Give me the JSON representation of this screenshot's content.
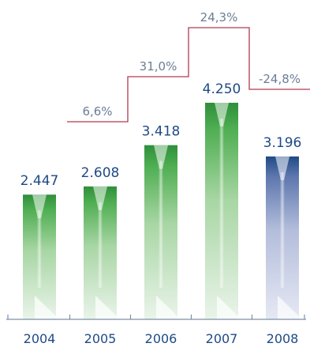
{
  "chart_data": {
    "type": "bar",
    "categories": [
      "2004",
      "2005",
      "2006",
      "2007",
      "2008"
    ],
    "values": [
      2447,
      2608,
      3418,
      4250,
      3196
    ],
    "value_labels": [
      "2.447",
      "2.608",
      "3.418",
      "4.250",
      "3.196"
    ],
    "growth_labels": [
      "6,6%",
      "31,0%",
      "24,3%",
      "-24,8%"
    ],
    "growth_values": [
      6.6,
      31.0,
      24.3,
      -24.8
    ],
    "ylim": [
      0,
      4250
    ],
    "title": "",
    "xlabel": "",
    "ylabel": "",
    "grid": false,
    "legend": "none"
  },
  "colors": {
    "bar_green_dark": "#2f8f3a",
    "bar_green_light": "#e4f1e4",
    "bar_blue_dark": "#1f4a86",
    "bar_blue_light": "#e1e6f2",
    "step_line": "#b23a50",
    "axis": "#7c8fa8",
    "value_text": "#1e4a85",
    "growth_text": "#6b7e95"
  }
}
